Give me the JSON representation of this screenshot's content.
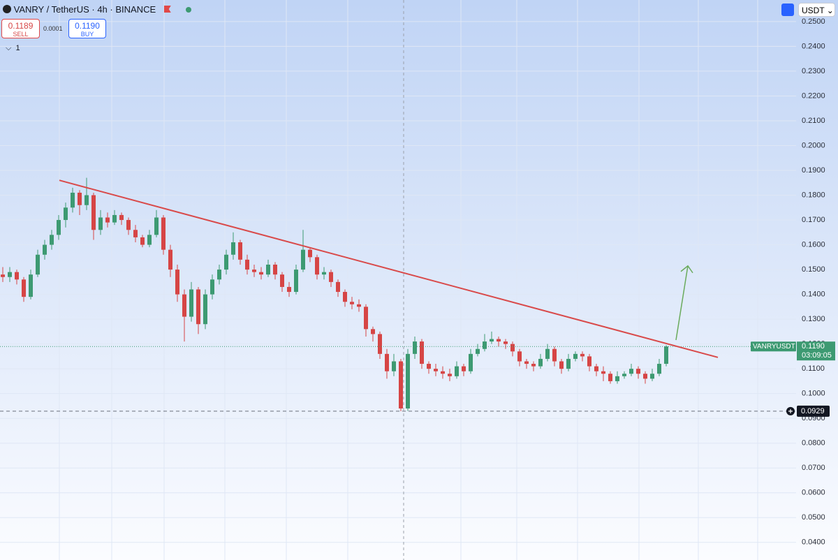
{
  "toolbar": {
    "symbol": "VANRY / TetherUS · 4h · BINANCE",
    "sell_price": "0.1189",
    "sell_label": "SELL",
    "spread": "0.0001",
    "buy_price": "0.1190",
    "buy_label": "BUY",
    "indicator_count": "1",
    "currency": "USDT"
  },
  "chart_data": {
    "type": "candlestick",
    "up_color": "#3d9a72",
    "down_color": "#d64545",
    "ylim": [
      0.0329,
      0.2587
    ],
    "yticks": [
      {
        "value": 0.25,
        "label": "0.2500"
      },
      {
        "value": 0.24,
        "label": "0.2400"
      },
      {
        "value": 0.23,
        "label": "0.2300"
      },
      {
        "value": 0.22,
        "label": "0.2200"
      },
      {
        "value": 0.21,
        "label": "0.2100"
      },
      {
        "value": 0.2,
        "label": "0.2000"
      },
      {
        "value": 0.19,
        "label": "0.1900"
      },
      {
        "value": 0.18,
        "label": "0.1800"
      },
      {
        "value": 0.17,
        "label": "0.1700"
      },
      {
        "value": 0.16,
        "label": "0.1600"
      },
      {
        "value": 0.15,
        "label": "0.1500"
      },
      {
        "value": 0.14,
        "label": "0.1400"
      },
      {
        "value": 0.13,
        "label": "0.1300"
      },
      {
        "value": 0.12,
        "label": "0.1200"
      },
      {
        "value": 0.11,
        "label": "0.1100"
      },
      {
        "value": 0.1,
        "label": "0.1000"
      },
      {
        "value": 0.09,
        "label": "0.0900"
      },
      {
        "value": 0.08,
        "label": "0.0800"
      },
      {
        "value": 0.07,
        "label": "0.0700"
      },
      {
        "value": 0.06,
        "label": "0.0600"
      },
      {
        "value": 0.05,
        "label": "0.0500"
      },
      {
        "value": 0.04,
        "label": "0.0400"
      }
    ],
    "grid": true,
    "candles": [
      [
        0.148,
        0.151,
        0.145,
        0.147
      ],
      [
        0.147,
        0.151,
        0.145,
        0.149
      ],
      [
        0.149,
        0.15,
        0.144,
        0.146
      ],
      [
        0.146,
        0.147,
        0.137,
        0.139
      ],
      [
        0.139,
        0.15,
        0.138,
        0.148
      ],
      [
        0.148,
        0.158,
        0.147,
        0.156
      ],
      [
        0.156,
        0.162,
        0.154,
        0.16
      ],
      [
        0.16,
        0.166,
        0.158,
        0.164
      ],
      [
        0.164,
        0.172,
        0.162,
        0.17
      ],
      [
        0.17,
        0.177,
        0.167,
        0.175
      ],
      [
        0.175,
        0.183,
        0.173,
        0.181
      ],
      [
        0.181,
        0.182,
        0.172,
        0.176
      ],
      [
        0.176,
        0.187,
        0.174,
        0.18
      ],
      [
        0.18,
        0.181,
        0.162,
        0.166
      ],
      [
        0.166,
        0.174,
        0.164,
        0.171
      ],
      [
        0.171,
        0.173,
        0.167,
        0.169
      ],
      [
        0.169,
        0.174,
        0.168,
        0.172
      ],
      [
        0.172,
        0.173,
        0.168,
        0.17
      ],
      [
        0.17,
        0.171,
        0.164,
        0.166
      ],
      [
        0.166,
        0.168,
        0.161,
        0.163
      ],
      [
        0.163,
        0.164,
        0.159,
        0.16
      ],
      [
        0.16,
        0.166,
        0.159,
        0.164
      ],
      [
        0.164,
        0.174,
        0.163,
        0.171
      ],
      [
        0.171,
        0.172,
        0.156,
        0.158
      ],
      [
        0.158,
        0.16,
        0.147,
        0.15
      ],
      [
        0.15,
        0.152,
        0.137,
        0.14
      ],
      [
        0.14,
        0.142,
        0.121,
        0.131
      ],
      [
        0.131,
        0.145,
        0.129,
        0.142
      ],
      [
        0.142,
        0.143,
        0.124,
        0.128
      ],
      [
        0.128,
        0.142,
        0.126,
        0.14
      ],
      [
        0.14,
        0.148,
        0.138,
        0.146
      ],
      [
        0.146,
        0.152,
        0.144,
        0.15
      ],
      [
        0.15,
        0.158,
        0.148,
        0.156
      ],
      [
        0.156,
        0.165,
        0.154,
        0.161
      ],
      [
        0.161,
        0.162,
        0.152,
        0.154
      ],
      [
        0.154,
        0.156,
        0.148,
        0.15
      ],
      [
        0.15,
        0.152,
        0.147,
        0.149
      ],
      [
        0.149,
        0.151,
        0.146,
        0.148
      ],
      [
        0.148,
        0.154,
        0.147,
        0.152
      ],
      [
        0.152,
        0.153,
        0.146,
        0.148
      ],
      [
        0.148,
        0.149,
        0.141,
        0.143
      ],
      [
        0.143,
        0.145,
        0.139,
        0.141
      ],
      [
        0.141,
        0.152,
        0.14,
        0.15
      ],
      [
        0.15,
        0.166,
        0.149,
        0.158
      ],
      [
        0.158,
        0.159,
        0.153,
        0.155
      ],
      [
        0.155,
        0.156,
        0.146,
        0.148
      ],
      [
        0.148,
        0.151,
        0.146,
        0.149
      ],
      [
        0.149,
        0.15,
        0.143,
        0.145
      ],
      [
        0.145,
        0.146,
        0.139,
        0.141
      ],
      [
        0.141,
        0.142,
        0.135,
        0.137
      ],
      [
        0.137,
        0.139,
        0.134,
        0.136
      ],
      [
        0.136,
        0.138,
        0.133,
        0.135
      ],
      [
        0.135,
        0.136,
        0.123,
        0.126
      ],
      [
        0.126,
        0.127,
        0.121,
        0.124
      ],
      [
        0.124,
        0.125,
        0.114,
        0.116
      ],
      [
        0.116,
        0.118,
        0.106,
        0.109
      ],
      [
        0.109,
        0.116,
        0.107,
        0.113
      ],
      [
        0.113,
        0.114,
        0.0929,
        0.094
      ],
      [
        0.094,
        0.118,
        0.093,
        0.116
      ],
      [
        0.116,
        0.123,
        0.114,
        0.121
      ],
      [
        0.121,
        0.122,
        0.11,
        0.112
      ],
      [
        0.112,
        0.113,
        0.108,
        0.11
      ],
      [
        0.11,
        0.112,
        0.107,
        0.109
      ],
      [
        0.109,
        0.111,
        0.106,
        0.108
      ],
      [
        0.108,
        0.11,
        0.105,
        0.107
      ],
      [
        0.107,
        0.113,
        0.106,
        0.111
      ],
      [
        0.111,
        0.112,
        0.107,
        0.109
      ],
      [
        0.109,
        0.118,
        0.108,
        0.116
      ],
      [
        0.116,
        0.12,
        0.115,
        0.118
      ],
      [
        0.118,
        0.124,
        0.117,
        0.121
      ],
      [
        0.121,
        0.125,
        0.12,
        0.122
      ],
      [
        0.122,
        0.123,
        0.119,
        0.121
      ],
      [
        0.121,
        0.122,
        0.118,
        0.12
      ],
      [
        0.12,
        0.121,
        0.115,
        0.117
      ],
      [
        0.117,
        0.118,
        0.111,
        0.113
      ],
      [
        0.113,
        0.114,
        0.11,
        0.112
      ],
      [
        0.112,
        0.113,
        0.109,
        0.111
      ],
      [
        0.111,
        0.116,
        0.11,
        0.114
      ],
      [
        0.114,
        0.12,
        0.113,
        0.118
      ],
      [
        0.118,
        0.119,
        0.111,
        0.113
      ],
      [
        0.113,
        0.114,
        0.108,
        0.11
      ],
      [
        0.11,
        0.116,
        0.109,
        0.114
      ],
      [
        0.114,
        0.117,
        0.113,
        0.116
      ],
      [
        0.116,
        0.117,
        0.113,
        0.115
      ],
      [
        0.115,
        0.116,
        0.109,
        0.111
      ],
      [
        0.111,
        0.112,
        0.107,
        0.109
      ],
      [
        0.109,
        0.111,
        0.105,
        0.108
      ],
      [
        0.108,
        0.109,
        0.104,
        0.105
      ],
      [
        0.105,
        0.109,
        0.104,
        0.107
      ],
      [
        0.107,
        0.109,
        0.106,
        0.108
      ],
      [
        0.108,
        0.112,
        0.107,
        0.11
      ],
      [
        0.11,
        0.111,
        0.106,
        0.108
      ],
      [
        0.108,
        0.109,
        0.104,
        0.106
      ],
      [
        0.106,
        0.11,
        0.105,
        0.108
      ],
      [
        0.108,
        0.114,
        0.107,
        0.112
      ],
      [
        0.112,
        0.1195,
        0.111,
        0.119
      ]
    ],
    "trendline": {
      "color": "#d94a4a",
      "values": [
        0.186,
        0.1146
      ]
    },
    "arrow": {
      "color": "#6aab5c",
      "values": [
        0.1216,
        0.1515
      ]
    },
    "symbol_label": "VANRYUSDT",
    "last_price": {
      "value": 0.119,
      "label": "0.1190"
    },
    "countdown": "03:09:05",
    "low_price": 0.0929
  }
}
